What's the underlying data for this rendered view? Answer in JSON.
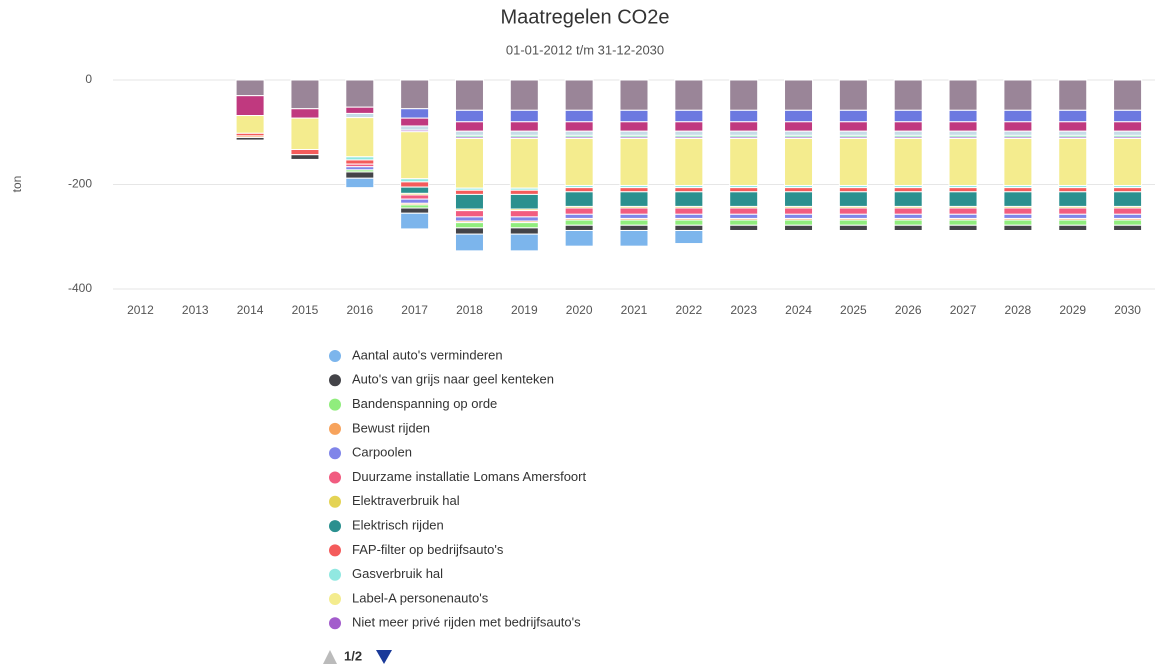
{
  "chart_data": {
    "type": "bar",
    "stacked": true,
    "title": "Maatregelen CO2e",
    "subtitle": "01-01-2012 t/m 31-12-2030",
    "y_label": "ton",
    "legend_page": "1/2",
    "categories": [
      "2012",
      "2013",
      "2014",
      "2015",
      "2016",
      "2017",
      "2018",
      "2019",
      "2020",
      "2021",
      "2022",
      "2023",
      "2024",
      "2025",
      "2026",
      "2027",
      "2028",
      "2029",
      "2030"
    ],
    "ylim": [
      -400,
      0
    ],
    "yticks": [
      -400,
      -200,
      0
    ],
    "grid": true,
    "series": [
      {
        "name": "Aantal auto's verminderen",
        "color": "#7cb5ec",
        "values": [
          null,
          null,
          null,
          null,
          -18,
          -30,
          -32,
          -32,
          -30,
          -30,
          -25,
          null,
          null,
          null,
          null,
          null,
          null,
          null,
          null
        ]
      },
      {
        "name": "Auto's van grijs naar geel kenteken",
        "color": "#434348",
        "values": [
          null,
          null,
          -5,
          -9,
          -12,
          -10,
          -12,
          -12,
          -10,
          -10,
          -10,
          -10,
          -10,
          -10,
          -10,
          -10,
          -10,
          -10,
          -10
        ]
      },
      {
        "name": "Bandenspanning op orde",
        "color": "#90ed7d",
        "values": [
          null,
          null,
          null,
          null,
          -4,
          -6,
          -10,
          -10,
          -10,
          -10,
          -10,
          -10,
          -10,
          -10,
          -10,
          -10,
          -10,
          -10,
          -10
        ]
      },
      {
        "name": "Bewust rijden",
        "color": "#f7a35c",
        "values": [
          null,
          null,
          -3,
          null,
          null,
          -3,
          -3,
          -3,
          -3,
          -3,
          -3,
          -3,
          -3,
          -3,
          -3,
          -3,
          -3,
          -3,
          -3
        ]
      },
      {
        "name": "Carpoolen",
        "color": "#8085e9",
        "values": [
          null,
          null,
          null,
          null,
          -6,
          -8,
          -8,
          -8,
          -8,
          -8,
          -8,
          -8,
          -8,
          -8,
          -8,
          -8,
          -8,
          -8,
          -8
        ]
      },
      {
        "name": "Duurzame installatie Lomans Amersfoort",
        "color": "#f15c80",
        "values": [
          null,
          null,
          null,
          null,
          -5,
          -8,
          -12,
          -12,
          -12,
          -12,
          -12,
          -12,
          -12,
          -12,
          -12,
          -12,
          -12,
          -12,
          -12
        ]
      },
      {
        "name": "Elektraverbruik hal",
        "color": "#e4d354",
        "values": [
          null,
          null,
          null,
          null,
          null,
          -3,
          -3,
          -3,
          -3,
          -3,
          -3,
          -3,
          -3,
          -3,
          -3,
          -3,
          -3,
          -3,
          -3
        ]
      },
      {
        "name": "Elektrisch rijden",
        "color": "#2b908f",
        "values": [
          null,
          null,
          null,
          null,
          null,
          -12,
          -28,
          -28,
          -28,
          -28,
          -28,
          -28,
          -28,
          -28,
          -28,
          -28,
          -28,
          -28,
          -28
        ]
      },
      {
        "name": "FAP-filter op bedrijfsauto's",
        "color": "#f45b5b",
        "values": [
          null,
          null,
          -5,
          -10,
          -8,
          -10,
          -8,
          -8,
          -8,
          -8,
          -8,
          -8,
          -8,
          -8,
          -8,
          -8,
          -8,
          -8,
          -8
        ]
      },
      {
        "name": "Gasverbruik hal",
        "color": "#91e8e1",
        "values": [
          null,
          null,
          null,
          null,
          -6,
          -6,
          -4,
          -4,
          -4,
          -4,
          -4,
          -4,
          -4,
          -4,
          -4,
          -4,
          -4,
          -4,
          -4
        ]
      },
      {
        "name": "Label-A personenauto's",
        "color": "#f4ec8e",
        "values": [
          null,
          null,
          -34,
          -60,
          -75,
          -90,
          -95,
          -95,
          -90,
          -90,
          -90,
          -90,
          -90,
          -90,
          -90,
          -90,
          -90,
          -90,
          -90
        ]
      },
      {
        "name": "Niet meer privé rijden met bedrijfsauto's",
        "color": "#a35ccc",
        "values": [
          null,
          null,
          null,
          null,
          null,
          -3,
          -3,
          -3,
          -3,
          -3,
          -3,
          -3,
          -3,
          -3,
          -3,
          -3,
          -3,
          -3,
          -3
        ]
      },
      {
        "color": "#3ecf8e",
        "values": [
          null,
          null,
          null,
          null,
          null,
          null,
          -3,
          -3,
          -3,
          -3,
          -3,
          -3,
          -3,
          -3,
          -3,
          -3,
          -3,
          -3,
          -3
        ]
      },
      {
        "color": "#c6dce8",
        "values": [
          null,
          null,
          null,
          null,
          -8,
          -8,
          -8,
          -8,
          -8,
          -8,
          -8,
          -8,
          -8,
          -8,
          -8,
          -8,
          -8,
          -8,
          -8
        ]
      },
      {
        "color": "#c0397f",
        "values": [
          null,
          null,
          -38,
          -18,
          -12,
          -15,
          -18,
          -18,
          -18,
          -18,
          -18,
          -18,
          -18,
          -18,
          -18,
          -18,
          -18,
          -18,
          -18
        ]
      },
      {
        "color": "#6c79e0",
        "values": [
          null,
          null,
          null,
          null,
          null,
          -18,
          -22,
          -22,
          -22,
          -22,
          -22,
          -22,
          -22,
          -22,
          -22,
          -22,
          -22,
          -22,
          -22
        ]
      },
      {
        "color": "#9a8598",
        "values": [
          null,
          null,
          -30,
          -55,
          -52,
          -55,
          -58,
          -58,
          -58,
          -58,
          -58,
          -58,
          -58,
          -58,
          -58,
          -58,
          -58,
          -58,
          -58
        ]
      }
    ]
  }
}
